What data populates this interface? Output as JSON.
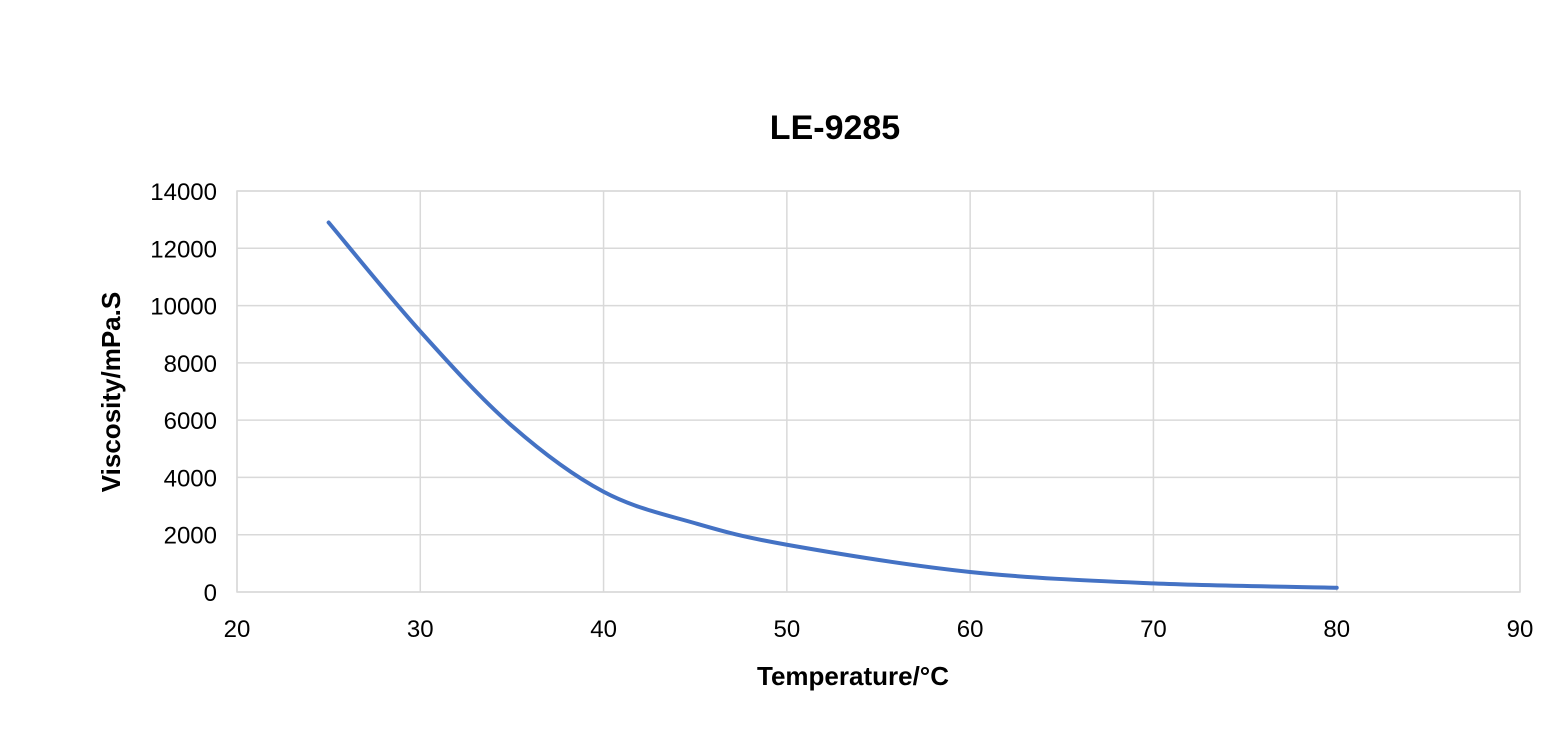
{
  "chart_data": {
    "type": "line",
    "title": "LE-9285",
    "xlabel": "Temperature/°C",
    "ylabel": "Viscosity/mPa.S",
    "xlim": [
      20,
      90
    ],
    "ylim": [
      0,
      14000
    ],
    "xticks": [
      20,
      30,
      40,
      50,
      60,
      70,
      80,
      90
    ],
    "yticks": [
      0,
      2000,
      4000,
      6000,
      8000,
      10000,
      12000,
      14000
    ],
    "grid": true,
    "legend": "none",
    "series": [
      {
        "color": "#4472c4",
        "smooth": true,
        "points": [
          {
            "x": 25,
            "y": 12900
          },
          {
            "x": 30,
            "y": 9100
          },
          {
            "x": 35,
            "y": 5800
          },
          {
            "x": 40,
            "y": 3500
          },
          {
            "x": 45,
            "y": 2400
          },
          {
            "x": 50,
            "y": 1650
          },
          {
            "x": 60,
            "y": 700
          },
          {
            "x": 70,
            "y": 300
          },
          {
            "x": 80,
            "y": 150
          }
        ]
      }
    ]
  }
}
